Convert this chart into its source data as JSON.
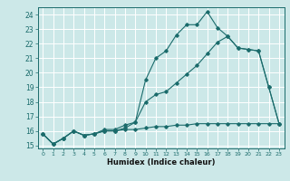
{
  "xlabel": "Humidex (Indice chaleur)",
  "bg_color": "#cce8e8",
  "grid_color": "#ffffff",
  "line_color": "#1a6b6b",
  "x_values": [
    0,
    1,
    2,
    3,
    4,
    5,
    6,
    7,
    8,
    9,
    10,
    11,
    12,
    13,
    14,
    15,
    16,
    17,
    18,
    19,
    20,
    21,
    22,
    23
  ],
  "series1": [
    15.8,
    15.1,
    15.5,
    16.0,
    15.7,
    15.8,
    16.1,
    16.1,
    16.4,
    16.6,
    19.5,
    21.0,
    21.5,
    22.6,
    23.3,
    23.3,
    24.2,
    23.1,
    22.5,
    21.7,
    21.6,
    21.5,
    19.0,
    16.5
  ],
  "series2": [
    15.8,
    15.1,
    15.5,
    16.0,
    15.7,
    15.8,
    16.0,
    16.0,
    16.2,
    16.6,
    18.0,
    18.5,
    18.7,
    19.3,
    19.9,
    20.5,
    21.3,
    22.1,
    22.5,
    21.7,
    21.6,
    21.5,
    19.0,
    16.5
  ],
  "series3": [
    15.8,
    15.1,
    15.5,
    16.0,
    15.7,
    15.8,
    16.0,
    16.0,
    16.1,
    16.1,
    16.2,
    16.3,
    16.3,
    16.4,
    16.4,
    16.5,
    16.5,
    16.5,
    16.5,
    16.5,
    16.5,
    16.5,
    16.5,
    16.5
  ],
  "ylim": [
    14.8,
    24.5
  ],
  "xlim": [
    -0.5,
    23.5
  ],
  "yticks": [
    15,
    16,
    17,
    18,
    19,
    20,
    21,
    22,
    23,
    24
  ],
  "xticks": [
    0,
    1,
    2,
    3,
    4,
    5,
    6,
    7,
    8,
    9,
    10,
    11,
    12,
    13,
    14,
    15,
    16,
    17,
    18,
    19,
    20,
    21,
    22,
    23
  ]
}
